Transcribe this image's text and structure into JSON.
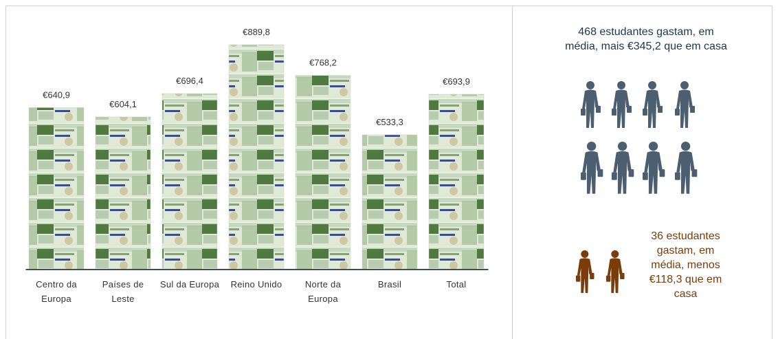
{
  "chart_data": {
    "type": "bar",
    "categories": [
      "Centro da Europa",
      "Países de Leste",
      "Sul da Europa",
      "Reino Unido",
      "Norte da Europa",
      "Brasil",
      "Total"
    ],
    "values": [
      640.9,
      604.1,
      696.4,
      889.8,
      768.2,
      533.3,
      693.9
    ],
    "value_labels": [
      "€640,9",
      "€604,1",
      "€696,4",
      "€889,8",
      "€768,2",
      "€533,3",
      "€693,9"
    ],
    "ylim": [
      0,
      1000
    ],
    "annotations": [
      "468 estudantes gastam, em média, mais €345,2 que em casa",
      "36 estudantes gastam, em média, menos €118,3 que em casa"
    ]
  }
}
